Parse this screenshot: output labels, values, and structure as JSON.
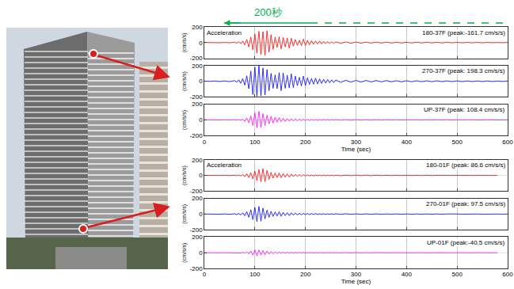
{
  "chart_data": {
    "type": "line",
    "annotation": {
      "text": "200秒",
      "color": "#00b050"
    },
    "xlabel": "Time (sec)",
    "ylabel": "(cm/s/s)",
    "xlim": [
      0,
      600
    ],
    "xticks": [
      0,
      100,
      200,
      300,
      400,
      500,
      600
    ],
    "ylim": [
      -200,
      200
    ],
    "yticks": [
      -200,
      0,
      200
    ],
    "grid": true,
    "x": [
      0,
      10,
      20,
      30,
      40,
      50,
      60,
      64,
      68,
      72,
      76,
      80,
      84,
      88,
      92,
      96,
      100,
      104,
      108,
      112,
      116,
      120,
      124,
      128,
      132,
      136,
      140,
      144,
      148,
      152,
      156,
      160,
      164,
      168,
      172,
      176,
      180,
      184,
      188,
      192,
      196,
      200,
      204,
      208,
      212,
      216,
      220,
      224,
      228,
      232,
      236,
      240,
      244,
      248,
      252,
      256,
      260,
      270,
      280,
      290,
      300,
      310,
      320,
      330,
      340,
      350,
      360,
      370,
      380,
      390,
      400,
      410,
      420,
      430,
      440,
      450,
      460,
      470,
      480,
      490,
      500,
      510,
      520,
      530,
      540,
      550,
      560,
      570,
      580,
      590,
      600
    ],
    "groups": [
      {
        "title": "Acceleration",
        "series": [
          {
            "name": "180-37F (peak:-161.7 cm/s/s)",
            "color": "#ff0000",
            "values": [
              1,
              -1,
              2,
              -2,
              2,
              -3,
              5,
              -8,
              12,
              -15,
              20,
              -30,
              40,
              -55,
              70,
              -90,
              110,
              -130,
              145,
              -150,
              140,
              -161.7,
              150,
              -120,
              100,
              -85,
              70,
              -60,
              75,
              -80,
              65,
              -55,
              60,
              -70,
              55,
              -45,
              40,
              -35,
              30,
              -40,
              45,
              -38,
              30,
              -28,
              25,
              -22,
              20,
              -18,
              20,
              -16,
              15,
              -14,
              12,
              -12,
              11,
              -10,
              10,
              -10,
              9,
              -9,
              8,
              -8,
              7,
              -7,
              7,
              -6,
              6,
              -6,
              5,
              -5,
              5,
              -5,
              5,
              -4,
              4,
              -4,
              4,
              -4,
              4,
              -3,
              3,
              -3,
              3,
              -3,
              3,
              -3,
              3,
              -2,
              2,
              -2,
              2
            ]
          },
          {
            "name": "270-37F (peak: 198.3 cm/s/s)",
            "color": "#0000ff",
            "values": [
              2,
              -2,
              3,
              -3,
              4,
              -5,
              8,
              -12,
              18,
              -25,
              35,
              -50,
              70,
              -95,
              130,
              -170,
              180,
              -190,
              198.3,
              -185,
              170,
              -175,
              150,
              -120,
              100,
              -90,
              80,
              -95,
              110,
              -120,
              105,
              -90,
              75,
              -85,
              95,
              -80,
              65,
              -55,
              50,
              -60,
              65,
              -55,
              45,
              -40,
              35,
              -38,
              40,
              -35,
              30,
              -28,
              25,
              -24,
              22,
              -20,
              18,
              -17,
              16,
              -15,
              14,
              -13,
              12,
              -12,
              11,
              -10,
              10,
              -9,
              9,
              -8,
              8,
              -8,
              7,
              -7,
              7,
              -6,
              6,
              -6,
              6,
              -5,
              5,
              -5,
              5,
              -5,
              4,
              -4,
              4,
              -4,
              4,
              -4,
              3,
              -3,
              3
            ]
          },
          {
            "name": "UP-37F (peak: 108.4 cm/s/s)",
            "color": "#ff00ff",
            "values": [
              1,
              -1,
              1,
              -1,
              2,
              -2,
              3,
              -4,
              6,
              -8,
              12,
              -18,
              25,
              -35,
              50,
              -70,
              90,
              -100,
              108.4,
              -95,
              80,
              -70,
              60,
              -50,
              45,
              -40,
              35,
              -30,
              28,
              -25,
              22,
              -20,
              18,
              -16,
              15,
              -14,
              13,
              -12,
              11,
              -10,
              10,
              -9,
              9,
              -8,
              8,
              -7,
              7,
              -7,
              6,
              -6,
              6,
              -5,
              5,
              -5,
              5,
              -4,
              4,
              -4,
              4,
              -4,
              3,
              -3,
              3,
              -3,
              3,
              -3,
              3,
              -2,
              2,
              -2,
              2,
              -2,
              2,
              -2,
              2,
              -2,
              2,
              -2,
              2,
              -2,
              2,
              -2,
              2,
              -1,
              1,
              -1,
              1,
              -1,
              1,
              -1,
              1
            ]
          }
        ]
      },
      {
        "title": "Acceleration",
        "series": [
          {
            "name": "180-01F (peak: 86.6 cm/s/s)",
            "color": "#ff0000",
            "values": [
              1,
              -1,
              1,
              -1,
              1,
              -2,
              3,
              -4,
              5,
              -7,
              10,
              -14,
              20,
              -28,
              35,
              -45,
              55,
              -65,
              75,
              -80,
              86.6,
              -78,
              65,
              -50,
              40,
              -35,
              30,
              -28,
              32,
              -30,
              25,
              -22,
              20,
              -22,
              18,
              -15,
              13,
              -12,
              11,
              -12,
              10,
              -9,
              8,
              -8,
              7,
              -7,
              6,
              -6,
              6,
              -5,
              5,
              -5,
              5,
              -4,
              4,
              -4,
              4,
              -4,
              3,
              -3,
              3,
              -3,
              3,
              -3,
              3,
              -2,
              2,
              -2,
              2,
              -2,
              2,
              -2,
              2,
              -2,
              2,
              -2,
              2,
              -1,
              1,
              -1,
              1,
              -1,
              1,
              -1,
              1,
              -1,
              1,
              -1,
              1
            ]
          },
          {
            "name": "270-01F (peak: 97.5 cm/s/s)",
            "color": "#0000ff",
            "values": [
              1,
              -1,
              2,
              -2,
              2,
              -3,
              4,
              -6,
              8,
              -12,
              16,
              -22,
              30,
              -40,
              55,
              -70,
              85,
              -95,
              97.5,
              -90,
              75,
              -60,
              50,
              -42,
              35,
              -30,
              28,
              -25,
              30,
              -28,
              22,
              -20,
              18,
              -20,
              16,
              -14,
              12,
              -11,
              10,
              -10,
              9,
              -8,
              8,
              -7,
              7,
              -6,
              6,
              -6,
              5,
              -5,
              5,
              -5,
              4,
              -4,
              4,
              -4,
              4,
              -4,
              4,
              -3,
              3,
              -3,
              3,
              -3,
              3,
              -3,
              2,
              -2,
              2,
              -2,
              2,
              -2,
              2,
              -2,
              2,
              -2,
              2,
              -2,
              2,
              -2,
              1,
              -1,
              1,
              -1,
              1,
              -1,
              1,
              -1,
              1,
              -1,
              1
            ]
          },
          {
            "name": "UP-01F (peak:-40.5 cm/s/s)",
            "color": "#ff00ff",
            "values": [
              1,
              -1,
              1,
              -1,
              1,
              -1,
              2,
              -2,
              3,
              -4,
              6,
              -8,
              12,
              -16,
              22,
              -30,
              36,
              -40.5,
              35,
              -30,
              28,
              -25,
              22,
              -18,
              15,
              -13,
              12,
              -11,
              10,
              -9,
              8,
              -8,
              7,
              -7,
              6,
              -6,
              5,
              -5,
              5,
              -4,
              4,
              -4,
              4,
              -3,
              3,
              -3,
              3,
              -3,
              3,
              -2,
              2,
              -2,
              2,
              -2,
              2,
              -2,
              2,
              -2,
              2,
              -2,
              2,
              -2,
              2,
              -2,
              2,
              -1,
              1,
              -1,
              1,
              -1,
              1,
              -1,
              1,
              -1,
              1,
              -1,
              1,
              -1,
              1,
              -1,
              1,
              -1,
              1,
              -1,
              1,
              -1,
              1,
              -1,
              1
            ]
          }
        ]
      }
    ]
  }
}
